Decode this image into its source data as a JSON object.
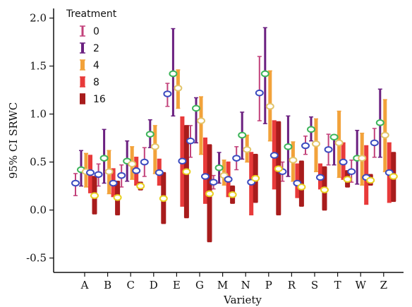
{
  "chart_data": {
    "type": "errorbar",
    "xlabel": "Variety",
    "ylabel": "95% CI SRWC",
    "ylim": [
      -0.65,
      2.1
    ],
    "yticks": [
      -0.5,
      0.0,
      0.5,
      1.0,
      1.5,
      2.0
    ],
    "ytick_labels": [
      "-0.5",
      "0.0",
      "0.5",
      "1.0",
      "1.5",
      "2.0"
    ],
    "categories": [
      "A",
      "B",
      "C",
      "D",
      "E",
      "G",
      "M",
      "N",
      "P",
      "R",
      "S",
      "T",
      "W",
      "Z"
    ],
    "legend": {
      "title": "Treatment",
      "position": "top-left"
    },
    "series": [
      {
        "name": "0",
        "color": "#c2417a",
        "marker_color": "#3b4bbf",
        "mean": [
          0.28,
          0.37,
          0.36,
          0.5,
          1.21,
          0.72,
          0.29,
          0.54,
          1.22,
          0.4,
          0.67,
          0.63,
          0.4,
          0.7
        ],
        "lower": [
          0.15,
          0.25,
          0.24,
          0.35,
          1.08,
          0.55,
          0.22,
          0.42,
          0.93,
          0.3,
          0.58,
          0.47,
          0.29,
          0.55
        ],
        "upper": [
          0.38,
          0.48,
          0.47,
          0.65,
          1.32,
          0.88,
          0.36,
          0.66,
          1.6,
          0.5,
          0.77,
          0.79,
          0.52,
          0.85
        ]
      },
      {
        "name": "2",
        "color": "#6b2080",
        "marker_color": "#3db55a",
        "mean": [
          0.42,
          0.54,
          0.51,
          0.79,
          1.42,
          1.06,
          0.44,
          0.78,
          1.42,
          0.66,
          0.84,
          0.76,
          0.54,
          0.91
        ],
        "lower": [
          0.25,
          0.28,
          0.3,
          0.65,
          0.98,
          0.7,
          0.28,
          0.53,
          0.9,
          0.35,
          0.72,
          0.47,
          0.27,
          0.55
        ],
        "upper": [
          0.62,
          0.84,
          0.72,
          0.94,
          1.89,
          1.17,
          0.6,
          1.02,
          1.9,
          0.98,
          0.97,
          0.78,
          0.83,
          1.26
        ]
      },
      {
        "name": "4",
        "color": "#f2a23a",
        "marker_color": "#e2c46a",
        "mean": [
          0.4,
          0.4,
          0.48,
          0.66,
          1.27,
          0.93,
          0.36,
          0.63,
          1.08,
          0.52,
          0.69,
          0.7,
          0.54,
          0.78
        ],
        "lower": [
          0.24,
          0.17,
          0.32,
          0.38,
          1.06,
          0.58,
          0.26,
          0.5,
          0.72,
          0.3,
          0.4,
          0.34,
          0.26,
          0.4
        ],
        "upper": [
          0.59,
          0.62,
          0.66,
          0.88,
          1.46,
          1.18,
          0.52,
          0.78,
          1.45,
          0.71,
          0.95,
          1.03,
          0.8,
          1.15
        ]
      },
      {
        "name": "8",
        "color": "#e83a3a",
        "marker_color": "#3b4bbf",
        "mean": [
          0.39,
          0.28,
          0.41,
          0.39,
          0.51,
          0.35,
          0.32,
          0.29,
          0.57,
          0.28,
          0.34,
          0.5,
          0.34,
          0.39
        ],
        "lower": [
          0.18,
          0.14,
          0.26,
          0.26,
          0.04,
          0.07,
          0.14,
          -0.05,
          0.22,
          0.13,
          0.22,
          0.32,
          0.06,
          0.08
        ],
        "upper": [
          0.57,
          0.43,
          0.55,
          0.53,
          0.97,
          0.75,
          0.5,
          0.6,
          0.93,
          0.48,
          0.48,
          0.7,
          0.67,
          0.7
        ]
      },
      {
        "name": "16",
        "color": "#a81c1c",
        "marker_color": "#e8d020",
        "mean": [
          0.15,
          0.13,
          0.25,
          0.12,
          0.4,
          0.17,
          0.16,
          0.33,
          0.43,
          0.24,
          0.21,
          0.32,
          0.31,
          0.35
        ],
        "lower": [
          -0.04,
          -0.05,
          0.21,
          -0.14,
          -0.08,
          -0.33,
          0.07,
          0.08,
          -0.05,
          0.04,
          0.0,
          0.24,
          0.26,
          0.09
        ],
        "upper": [
          0.35,
          0.3,
          0.29,
          0.39,
          0.88,
          0.68,
          0.25,
          0.58,
          0.92,
          0.51,
          0.45,
          0.41,
          0.37,
          0.6
        ]
      }
    ]
  }
}
